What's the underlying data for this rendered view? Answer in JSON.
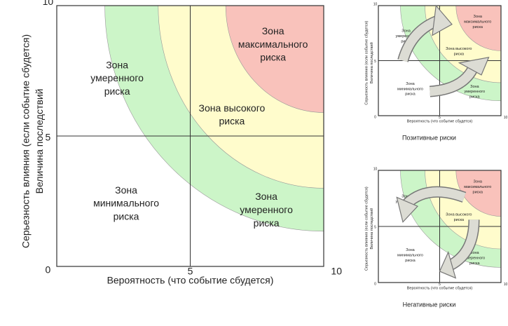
{
  "panels": [
    {
      "y_label": [
        "Серьезность влияния (если событие сбудется)",
        "Величина последствий"
      ],
      "x_label": "Вероятность (что событие сбудется)",
      "ticks": {
        "y_top": "10",
        "y_mid": "5",
        "origin": "0",
        "x_mid": "5",
        "x_right": "10"
      },
      "zones": {
        "max": [
          "Зона",
          "максимального",
          "риска"
        ],
        "moderate_upper": [
          "Зона",
          "умеренного",
          "риска"
        ],
        "high": [
          "Зона высокого",
          "риска"
        ],
        "minimal": [
          "Зона",
          "минимального",
          "риска"
        ],
        "moderate_lower": [
          "Зона",
          "умеренного",
          "риска"
        ]
      }
    },
    {
      "y_label": [
        "Серьезность влияния (если событие сбудется)",
        "Величина последствий"
      ],
      "x_label": "Вероятность (что событие сбудется)",
      "ticks": {
        "y_top": "10",
        "y_mid": "5",
        "origin": "0",
        "x_mid": "5",
        "x_right": "10"
      },
      "zones": {
        "max": [
          "Зона",
          "максимального",
          "риска"
        ],
        "moderate_upper": [
          "Зона",
          "умеренного",
          "риска"
        ],
        "high": [
          "Зона высокого",
          "риска"
        ],
        "minimal": [
          "Зона",
          "минимального",
          "риска"
        ],
        "moderate_lower": [
          "Зона",
          "умеренного",
          "риска"
        ]
      },
      "caption": "Позитивные риски"
    },
    {
      "y_label": [
        "Серьезность влияния (если событие сбудется)",
        "Величина последствий"
      ],
      "x_label": "Вероятность (что событие сбудется)",
      "ticks": {
        "y_top": "10",
        "y_mid": "5",
        "origin": "0",
        "x_mid": "5",
        "x_right": "10"
      },
      "zones": {
        "max": [
          "Зона",
          "максимального",
          "риска"
        ],
        "moderate_upper": [
          "Зона",
          "умеренного",
          "риска"
        ],
        "high": [
          "Зона высокого",
          "риска"
        ],
        "minimal": [
          "Зона",
          "минимального",
          "риска"
        ],
        "moderate_lower": [
          "Зона",
          "умеренного",
          "риска"
        ]
      },
      "caption": "Негативные риски"
    }
  ]
}
